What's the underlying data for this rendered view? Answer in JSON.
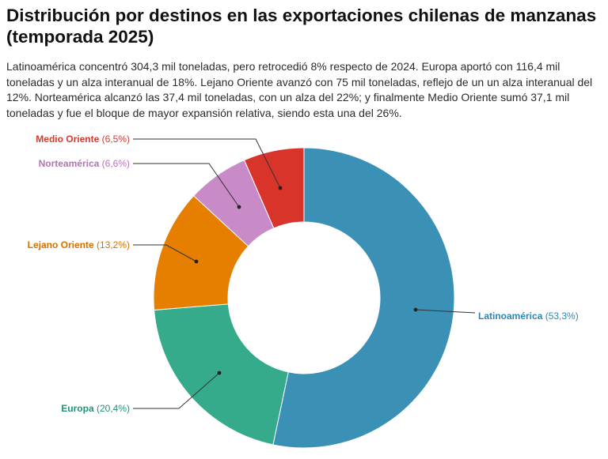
{
  "title": "Distribución por destinos en las exportaciones chilenas de manzanas (temporada 2025)",
  "subtitle": "Latinoamérica concentró 304,3 mil toneladas, pero retrocedió 8% respecto de 2024. Europa aportó con 116,4 mil toneladas y un alza interanual de 18%. Lejano Oriente avanzó con 75 mil toneladas, reflejo de un un alza interanual del 12%. Norteamérica alcanzó las 37,4 mil toneladas, con un alza del 22%; y finalmente Medio Oriente sumó 37,1 mil toneladas y fue el bloque de mayor expansión relativa, siendo esta una del 26%.",
  "chart_data": {
    "type": "pie",
    "donut": true,
    "title": "Distribución por destinos en las exportaciones chilenas de manzanas (temporada 2025)",
    "categories": [
      "Latinoamérica",
      "Europa",
      "Lejano Oriente",
      "Norteamérica",
      "Medio Oriente"
    ],
    "values": [
      53.3,
      20.4,
      13.2,
      6.6,
      6.5
    ],
    "value_labels": [
      "(53,3%)",
      "(20,4%)",
      "(13,2%)",
      "(6,6%)",
      "(6,5%)"
    ],
    "colors": [
      "#3a90b5",
      "#35ab8c",
      "#e67e00",
      "#c98bc7",
      "#d8342a"
    ],
    "label_colors": [
      "#2f86b0",
      "#23917a",
      "#d46f00",
      "#b473b5",
      "#d23a30"
    ]
  }
}
